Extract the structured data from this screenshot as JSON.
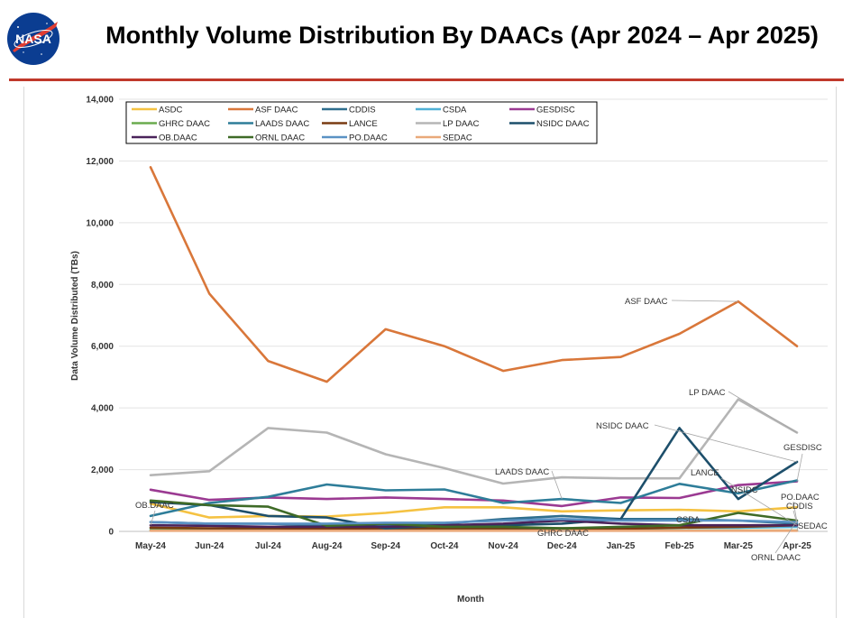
{
  "header": {
    "title": "Monthly Volume Distribution By DAACs (Apr 2024 – Apr 2025)",
    "logo_text": "NASA"
  },
  "chart_data": {
    "type": "line",
    "title": "Monthly Volume Distribution By DAACs (Apr 2024 – Apr 2025)",
    "xlabel": "Month",
    "ylabel": "Data Volume Distributed (TBs)",
    "ylim": [
      0,
      14000
    ],
    "yticks": [
      "0",
      "2,000",
      "4,000",
      "6,000",
      "8,000",
      "10,000",
      "12,000",
      "14,000"
    ],
    "ytick_values": [
      0,
      2000,
      4000,
      6000,
      8000,
      10000,
      12000,
      14000
    ],
    "grid": true,
    "legend": "top-left",
    "categories": [
      "May-24",
      "Jun-24",
      "Jul-24",
      "Aug-24",
      "Sep-24",
      "Oct-24",
      "Nov-24",
      "Dec-24",
      "Jan-25",
      "Feb-25",
      "Mar-25",
      "Apr-25"
    ],
    "series": [
      {
        "name": "ASDC",
        "color": "#f5c242",
        "values": [
          900,
          450,
          500,
          480,
          600,
          780,
          780,
          650,
          680,
          700,
          650,
          780
        ]
      },
      {
        "name": "ASF DAAC",
        "color": "#d9773a",
        "values": [
          11800,
          7700,
          5520,
          4850,
          6550,
          6000,
          5200,
          5550,
          5650,
          6400,
          7450,
          6000
        ]
      },
      {
        "name": "CDDIS",
        "color": "#2f6e8e",
        "values": [
          300,
          250,
          250,
          180,
          200,
          250,
          400,
          500,
          400,
          400,
          350,
          250
        ]
      },
      {
        "name": "CSDA",
        "color": "#4fb0d6",
        "values": [
          100,
          80,
          60,
          60,
          70,
          60,
          80,
          80,
          80,
          120,
          120,
          150
        ]
      },
      {
        "name": "GESDISC",
        "color": "#9b3a92",
        "values": [
          1350,
          1020,
          1100,
          1050,
          1100,
          1050,
          1000,
          820,
          1100,
          1080,
          1500,
          1620
        ]
      },
      {
        "name": "GHRC DAAC",
        "color": "#6aab4e",
        "values": [
          40,
          30,
          30,
          30,
          30,
          30,
          30,
          30,
          30,
          30,
          30,
          30
        ]
      },
      {
        "name": "LAADS DAAC",
        "color": "#2e7d99",
        "values": [
          500,
          920,
          1120,
          1520,
          1330,
          1360,
          920,
          1050,
          920,
          1540,
          1230,
          1650
        ]
      },
      {
        "name": "LANCE",
        "color": "#7a3b12",
        "values": [
          120,
          100,
          100,
          90,
          100,
          100,
          100,
          100,
          90,
          120,
          150,
          200
        ]
      },
      {
        "name": "LP DAAC",
        "color": "#b5b5b5",
        "values": [
          1820,
          1950,
          3350,
          3200,
          2500,
          2050,
          1550,
          1750,
          1720,
          1720,
          4280,
          3200
        ]
      },
      {
        "name": "NSIDC DAAC",
        "color": "#1d4f6b",
        "values": [
          950,
          850,
          500,
          450,
          100,
          200,
          200,
          250,
          400,
          3350,
          1050,
          2250
        ]
      },
      {
        "name": "OB.DAAC",
        "color": "#4a235a",
        "values": [
          200,
          180,
          150,
          150,
          150,
          200,
          250,
          350,
          250,
          200,
          200,
          200
        ]
      },
      {
        "name": "ORNL DAAC",
        "color": "#3f6b27",
        "values": [
          1000,
          850,
          800,
          180,
          250,
          150,
          150,
          100,
          150,
          200,
          600,
          350
        ]
      },
      {
        "name": "PO.DAAC",
        "color": "#5a92c4",
        "values": [
          300,
          250,
          250,
          250,
          280,
          280,
          350,
          400,
          350,
          350,
          350,
          300
        ]
      },
      {
        "name": "SEDAC",
        "color": "#e9a97a",
        "values": [
          20,
          20,
          20,
          20,
          20,
          20,
          20,
          20,
          20,
          20,
          20,
          20
        ]
      }
    ],
    "annotations": [
      "ASF DAAC",
      "LP DAAC",
      "NSIDC DAAC",
      "GESDISC",
      "LAADS DAAC",
      "LANCE",
      "NSIDC",
      "CDDIS",
      "PO.DAAC",
      "OB.DAAC",
      "CSDA",
      "SEDAC",
      "GHRC DAAC",
      "ORNL DAAC"
    ]
  }
}
